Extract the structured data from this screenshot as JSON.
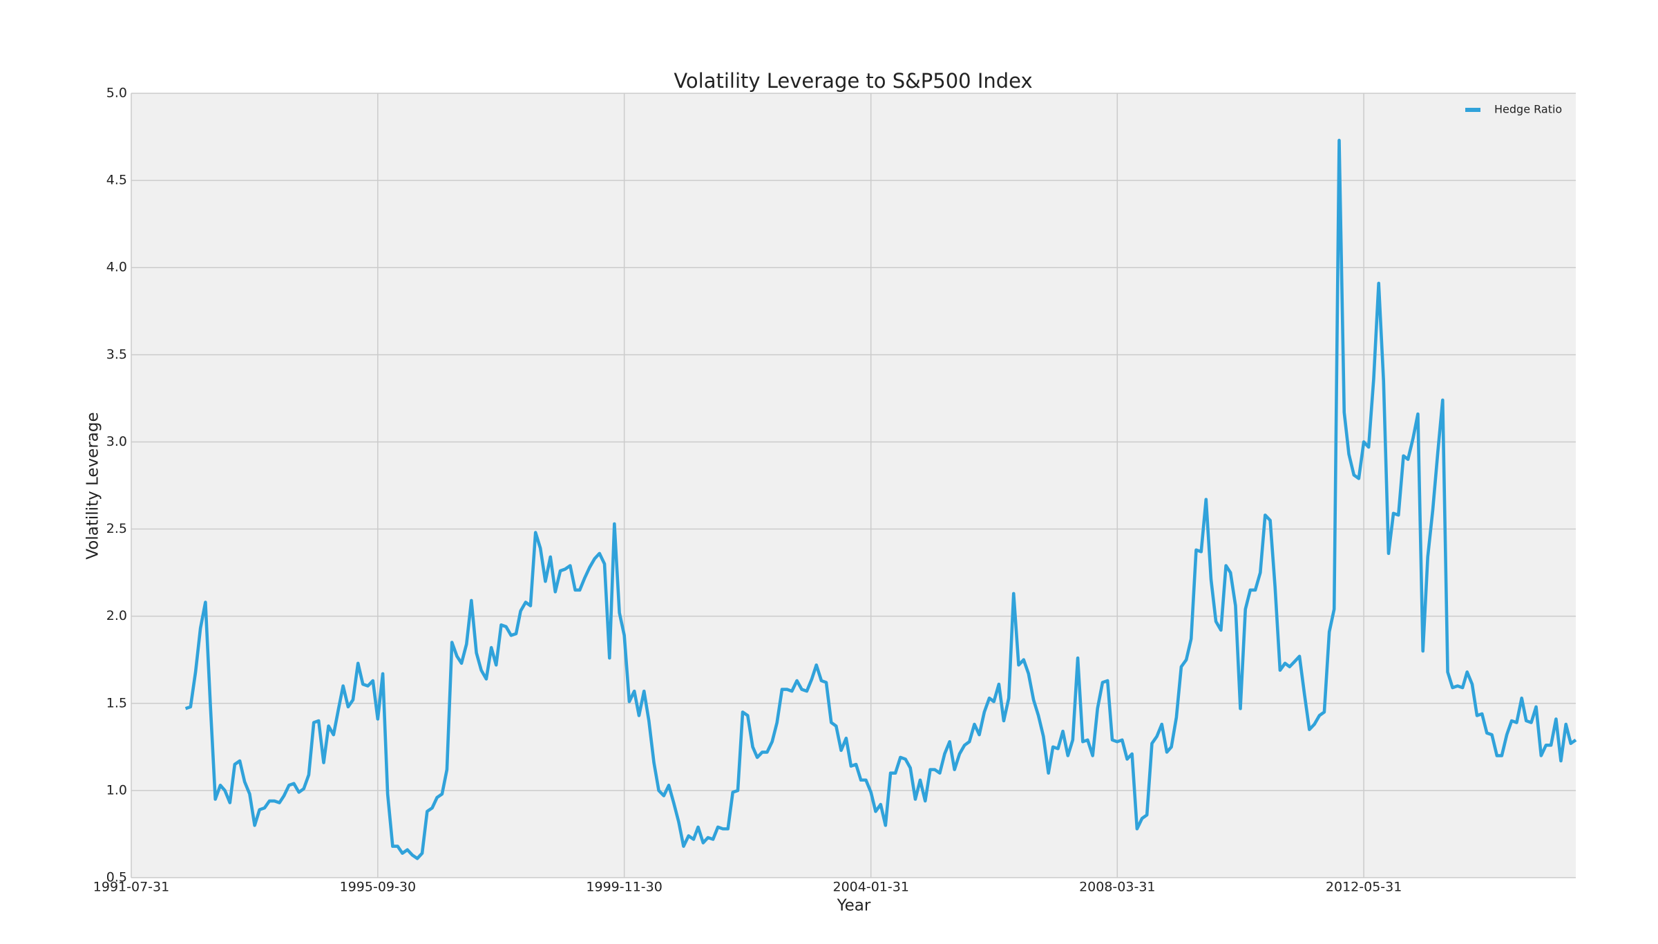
{
  "chart_data": {
    "type": "line",
    "title": "Volatility Leverage to S&P500 Index",
    "x_label": "Year",
    "y_label": "Volatility Leverage",
    "x": [
      "1992-06-30",
      "1992-07-31",
      "1992-08-31",
      "1992-09-30",
      "1992-10-31",
      "1992-11-30",
      "1992-12-31",
      "1993-01-31",
      "1993-02-28",
      "1993-03-31",
      "1993-04-30",
      "1993-05-31",
      "1993-06-30",
      "1993-07-31",
      "1993-08-31",
      "1993-09-30",
      "1993-10-31",
      "1993-11-30",
      "1993-12-31",
      "1994-01-31",
      "1994-02-28",
      "1994-03-31",
      "1994-04-30",
      "1994-05-31",
      "1994-06-30",
      "1994-07-31",
      "1994-08-31",
      "1994-09-30",
      "1994-10-31",
      "1994-11-30",
      "1994-12-31",
      "1995-01-31",
      "1995-02-28",
      "1995-03-31",
      "1995-04-30",
      "1995-05-31",
      "1995-06-30",
      "1995-07-31",
      "1995-08-31",
      "1995-09-30",
      "1995-10-31",
      "1995-11-30",
      "1995-12-31",
      "1996-01-31",
      "1996-02-29",
      "1996-03-31",
      "1996-04-30",
      "1996-05-31",
      "1996-06-30",
      "1996-07-31",
      "1996-08-31",
      "1996-09-30",
      "1996-10-31",
      "1996-11-30",
      "1996-12-31",
      "1997-01-31",
      "1997-02-28",
      "1997-03-31",
      "1997-04-30",
      "1997-05-31",
      "1997-06-30",
      "1997-07-31",
      "1997-08-31",
      "1997-09-30",
      "1997-10-31",
      "1997-11-30",
      "1997-12-31",
      "1998-01-31",
      "1998-02-28",
      "1998-03-31",
      "1998-04-30",
      "1998-05-31",
      "1998-06-30",
      "1998-07-31",
      "1998-08-31",
      "1998-09-30",
      "1998-10-31",
      "1998-11-30",
      "1998-12-31",
      "1999-01-31",
      "1999-02-28",
      "1999-03-31",
      "1999-04-30",
      "1999-05-31",
      "1999-06-30",
      "1999-07-31",
      "1999-08-31",
      "1999-09-30",
      "1999-10-31",
      "1999-11-30",
      "1999-12-31",
      "2000-01-31",
      "2000-02-29",
      "2000-03-31",
      "2000-04-30",
      "2000-05-31",
      "2000-06-30",
      "2000-07-31",
      "2000-08-31",
      "2000-09-30",
      "2000-10-31",
      "2000-11-30",
      "2000-12-31",
      "2001-01-31",
      "2001-02-28",
      "2001-03-31",
      "2001-04-30",
      "2001-05-31",
      "2001-06-30",
      "2001-07-31",
      "2001-08-31",
      "2001-09-30",
      "2001-10-31",
      "2001-11-30",
      "2001-12-31",
      "2002-01-31",
      "2002-02-28",
      "2002-03-31",
      "2002-04-30",
      "2002-05-31",
      "2002-06-30",
      "2002-07-31",
      "2002-08-31",
      "2002-09-30",
      "2002-10-31",
      "2002-11-30",
      "2002-12-31",
      "2003-01-31",
      "2003-02-28",
      "2003-03-31",
      "2003-04-30",
      "2003-05-31",
      "2003-06-30",
      "2003-07-31",
      "2003-08-31",
      "2003-09-30",
      "2003-10-31",
      "2003-11-30",
      "2003-12-31",
      "2004-01-31",
      "2004-02-29",
      "2004-03-31",
      "2004-04-30",
      "2004-05-31",
      "2004-06-30",
      "2004-07-31",
      "2004-08-31",
      "2004-09-30",
      "2004-10-31",
      "2004-11-30",
      "2004-12-31",
      "2005-01-31",
      "2005-02-28",
      "2005-03-31",
      "2005-04-30",
      "2005-05-31",
      "2005-06-30",
      "2005-07-31",
      "2005-08-31",
      "2005-09-30",
      "2005-10-31",
      "2005-11-30",
      "2005-12-31",
      "2006-01-31",
      "2006-02-28",
      "2006-03-31",
      "2006-04-30",
      "2006-05-31",
      "2006-06-30",
      "2006-07-31",
      "2006-08-31",
      "2006-09-30",
      "2006-10-31",
      "2006-11-30",
      "2006-12-31",
      "2007-01-31",
      "2007-02-28",
      "2007-03-31",
      "2007-04-30",
      "2007-05-31",
      "2007-06-30",
      "2007-07-31",
      "2007-08-31",
      "2007-09-30",
      "2007-10-31",
      "2007-11-30",
      "2007-12-31",
      "2008-01-31",
      "2008-02-29",
      "2008-03-31",
      "2008-04-30",
      "2008-05-31",
      "2008-06-30",
      "2008-07-31",
      "2008-08-31",
      "2008-09-30",
      "2008-10-31",
      "2008-11-30",
      "2008-12-31",
      "2009-01-31",
      "2009-02-28",
      "2009-03-31",
      "2009-04-30",
      "2009-05-31",
      "2009-06-30",
      "2009-07-31",
      "2009-08-31",
      "2009-09-30",
      "2009-10-31",
      "2009-11-30",
      "2009-12-31",
      "2010-01-31",
      "2010-02-28",
      "2010-03-31",
      "2010-04-30",
      "2010-05-31",
      "2010-06-30",
      "2010-07-31",
      "2010-08-31",
      "2010-09-30",
      "2010-10-31",
      "2010-11-30",
      "2010-12-31",
      "2011-01-31",
      "2011-02-28",
      "2011-03-31",
      "2011-04-30",
      "2011-05-31",
      "2011-06-30",
      "2011-07-31",
      "2011-08-31",
      "2011-09-30",
      "2011-10-31",
      "2011-11-30",
      "2011-12-31",
      "2012-01-31",
      "2012-02-29",
      "2012-03-31",
      "2012-04-30",
      "2012-05-31",
      "2012-06-30",
      "2012-07-31",
      "2012-08-31",
      "2012-09-30",
      "2012-10-31",
      "2012-11-30",
      "2012-12-31",
      "2013-01-31",
      "2013-02-28",
      "2013-03-31",
      "2013-04-30",
      "2013-05-31",
      "2013-06-30",
      "2013-07-31",
      "2013-08-31",
      "2013-09-30",
      "2013-10-31",
      "2013-11-30",
      "2013-12-31",
      "2014-01-31",
      "2014-02-28",
      "2014-03-31",
      "2014-04-30",
      "2014-05-31",
      "2014-06-30",
      "2014-07-31",
      "2014-08-31",
      "2014-09-30",
      "2014-10-31",
      "2014-11-30",
      "2014-12-31",
      "2015-01-31",
      "2015-02-28",
      "2015-03-31",
      "2015-04-30",
      "2015-05-31",
      "2015-06-30",
      "2015-07-31",
      "2015-08-31",
      "2015-09-30",
      "2015-10-31",
      "2015-11-30",
      "2015-12-31"
    ],
    "series": [
      {
        "name": "Hedge Ratio",
        "color": "#30a2da",
        "values": [
          1.47,
          1.48,
          1.68,
          1.93,
          2.08,
          1.5,
          0.95,
          1.03,
          1.0,
          0.93,
          1.15,
          1.17,
          1.05,
          0.98,
          0.8,
          0.89,
          0.9,
          0.94,
          0.94,
          0.93,
          0.97,
          1.03,
          1.04,
          0.99,
          1.01,
          1.09,
          1.39,
          1.4,
          1.16,
          1.37,
          1.32,
          1.47,
          1.6,
          1.48,
          1.52,
          1.73,
          1.61,
          1.6,
          1.63,
          1.41,
          1.67,
          0.98,
          0.68,
          0.68,
          0.64,
          0.66,
          0.63,
          0.61,
          0.64,
          0.88,
          0.9,
          0.96,
          0.98,
          1.12,
          1.85,
          1.77,
          1.73,
          1.84,
          2.09,
          1.79,
          1.69,
          1.64,
          1.82,
          1.72,
          1.95,
          1.94,
          1.89,
          1.9,
          2.03,
          2.08,
          2.06,
          2.48,
          2.39,
          2.2,
          2.34,
          2.14,
          2.26,
          2.27,
          2.29,
          2.15,
          2.15,
          2.22,
          2.28,
          2.33,
          2.36,
          2.3,
          1.76,
          2.53,
          2.02,
          1.89,
          1.51,
          1.57,
          1.43,
          1.57,
          1.4,
          1.16,
          1.0,
          0.97,
          1.03,
          0.93,
          0.82,
          0.68,
          0.74,
          0.72,
          0.79,
          0.7,
          0.73,
          0.72,
          0.79,
          0.78,
          0.78,
          0.99,
          1.0,
          1.45,
          1.43,
          1.25,
          1.19,
          1.22,
          1.22,
          1.28,
          1.39,
          1.58,
          1.58,
          1.57,
          1.63,
          1.58,
          1.57,
          1.64,
          1.72,
          1.63,
          1.62,
          1.39,
          1.37,
          1.23,
          1.3,
          1.14,
          1.15,
          1.06,
          1.06,
          0.99,
          0.88,
          0.92,
          0.8,
          1.1,
          1.1,
          1.19,
          1.18,
          1.13,
          0.95,
          1.06,
          0.94,
          1.12,
          1.12,
          1.1,
          1.21,
          1.28,
          1.12,
          1.21,
          1.26,
          1.28,
          1.38,
          1.32,
          1.45,
          1.53,
          1.51,
          1.61,
          1.4,
          1.53,
          2.13,
          1.72,
          1.75,
          1.67,
          1.52,
          1.43,
          1.31,
          1.1,
          1.25,
          1.24,
          1.34,
          1.2,
          1.29,
          1.76,
          1.28,
          1.29,
          1.2,
          1.47,
          1.62,
          1.63,
          1.29,
          1.28,
          1.29,
          1.18,
          1.21,
          0.78,
          0.84,
          0.86,
          1.27,
          1.31,
          1.38,
          1.22,
          1.25,
          1.42,
          1.71,
          1.75,
          1.87,
          2.38,
          2.37,
          2.67,
          2.21,
          1.97,
          1.92,
          2.29,
          2.25,
          2.06,
          1.47,
          2.04,
          2.15,
          2.15,
          2.25,
          2.58,
          2.55,
          2.17,
          1.69,
          1.73,
          1.71,
          1.74,
          1.77,
          1.55,
          1.35,
          1.38,
          1.43,
          1.45,
          1.91,
          2.04,
          4.73,
          3.17,
          2.93,
          2.81,
          2.79,
          3.0,
          2.97,
          3.36,
          3.91,
          3.35,
          2.36,
          2.59,
          2.58,
          2.92,
          2.9,
          3.02,
          3.16,
          1.8,
          2.34,
          2.61,
          2.94,
          3.24,
          1.68,
          1.59,
          1.6,
          1.59,
          1.68,
          1.61,
          1.43,
          1.44,
          1.33,
          1.32,
          1.2,
          1.2,
          1.32,
          1.4,
          1.39,
          1.53,
          1.4,
          1.39,
          1.48,
          1.2,
          1.26,
          1.26,
          1.41,
          1.17,
          1.38,
          1.27,
          1.29
        ]
      }
    ],
    "xlim": [
      "1991-07-31",
      "2015-12-31"
    ],
    "xticks": [
      "1991-07-31",
      "1995-09-30",
      "1999-11-30",
      "2004-01-31",
      "2008-03-31",
      "2012-05-31"
    ],
    "ylim": [
      0.5,
      5.0
    ],
    "yticks": [
      0.5,
      {
        "value": 1,
        "label": "1.0"
      },
      1.5,
      {
        "value": 2,
        "label": "2.0"
      },
      2.5,
      {
        "value": 3,
        "label": "3.0"
      },
      3.5,
      {
        "value": 4,
        "label": "4.0"
      },
      4.5,
      {
        "value": 5,
        "label": "5.0"
      }
    ],
    "grid": true,
    "legend": "upper right"
  }
}
